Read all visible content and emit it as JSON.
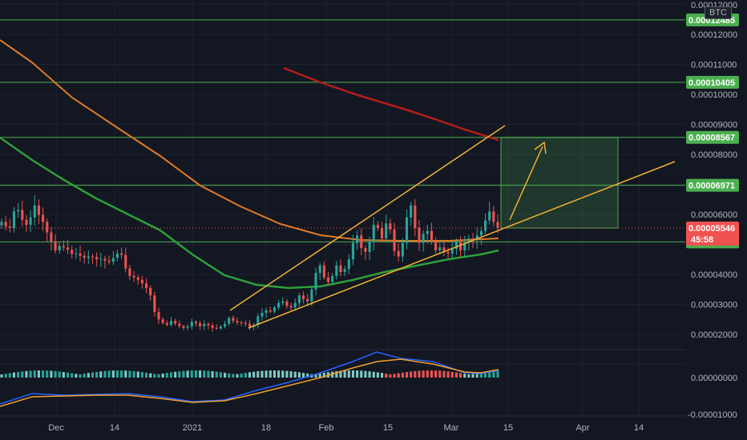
{
  "symbol": "BTC",
  "colors": {
    "background": "#131722",
    "grid": "#1e2230",
    "up": "#26a69a",
    "down": "#ef5350",
    "level_line": "#4caf50",
    "level_tag": "#4caf50",
    "price_tag": "#ef5350",
    "ma_red": "#b71c1c",
    "ma_orange": "#e07b22",
    "ma_green": "#2e9e3a",
    "wedge": "#f0b132",
    "target_box": "#4caf50",
    "macd_line": "#2962ff",
    "signal_line": "#f0a030"
  },
  "chart_data": {
    "type": "candlestick",
    "x_ticks": [
      "Dec",
      "14",
      "2021",
      "18",
      "Feb",
      "15",
      "Mar",
      "15",
      "Apr",
      "14"
    ],
    "y_ticks": [
      "0.00012000",
      "0.00012485",
      "0.00012000",
      "0.00011000",
      "0.00010405",
      "0.00010000",
      "0.00009000",
      "0.00008567",
      "0.00008000",
      "0.00006971",
      "0.00006000",
      "0.00005546",
      "45:58",
      "0.00005084",
      "0.00004000",
      "0.00003000",
      "0.00002000"
    ],
    "levels": [
      {
        "label": "0.00012485",
        "value": 0.00012485
      },
      {
        "label": "0.00010405",
        "value": 0.00010405
      },
      {
        "label": "0.00008567",
        "value": 8.567e-05
      },
      {
        "label": "0.00006971",
        "value": 6.971e-05
      },
      {
        "label": "0.00005084",
        "value": 5.084e-05
      }
    ],
    "last_price": {
      "label": "0.00005546",
      "value": 5.546e-05,
      "countdown": "45:58"
    },
    "price_axis_labels": [
      "0.00012000",
      "0.00011000",
      "0.00010000",
      "0.00009000",
      "0.00008000",
      "0.00006000",
      "0.00004000",
      "0.00003000",
      "0.00002000"
    ],
    "indicator_axis_labels": [
      "0.00000000",
      "-0.00001000"
    ],
    "close_series": [
      5.75e-05,
      5.6e-05,
      5.55e-05,
      6.1e-05,
      6.15e-05,
      5.82e-05,
      5.65e-05,
      5.9e-05,
      6.3e-05,
      5.98e-05,
      5.75e-05,
      5.4e-05,
      5.1e-05,
      4.8e-05,
      4.95e-05,
      4.9e-05,
      4.82e-05,
      4.68e-05,
      4.7e-05,
      4.62e-05,
      4.55e-05,
      4.6e-05,
      4.58e-05,
      4.5e-05,
      4.52e-05,
      4.46e-05,
      4.42e-05,
      4.55e-05,
      4.7e-05,
      4.65e-05,
      4.2e-05,
      3.95e-05,
      3.9e-05,
      3.82e-05,
      3.7e-05,
      3.55e-05,
      3.3e-05,
      2.75e-05,
      2.5e-05,
      2.38e-05,
      2.32e-05,
      2.45e-05,
      2.36e-05,
      2.28e-05,
      2.22e-05,
      2.26e-05,
      2.42e-05,
      2.37e-05,
      2.27e-05,
      2.35e-05,
      2.3e-05,
      2.22e-05,
      2.2e-05,
      2.26e-05,
      2.35e-05,
      2.55e-05,
      2.45e-05,
      2.4e-05,
      2.38e-05,
      2.36e-05,
      2.25e-05,
      2.32e-05,
      2.6e-05,
      2.72e-05,
      2.8e-05,
      2.76e-05,
      2.9e-05,
      3.05e-05,
      3.1e-05,
      2.95e-05,
      2.9e-05,
      3.05e-05,
      3.3e-05,
      3.18e-05,
      3.1e-05,
      3.5e-05,
      4.05e-05,
      4.3e-05,
      3.9e-05,
      3.75e-05,
      3.95e-05,
      4.3e-05,
      4.08e-05,
      4.18e-05,
      4.5e-05,
      5.05e-05,
      5.3e-05,
      4.88e-05,
      4.75e-05,
      5.1e-05,
      5.65e-05,
      5.55e-05,
      5.2e-05,
      5.7e-05,
      5.5e-05,
      4.78e-05,
      4.6e-05,
      5.05e-05,
      5.9e-05,
      6.3e-05,
      5.55e-05,
      5.05e-05,
      5.35e-05,
      5.45e-05,
      5.1e-05,
      4.8e-05,
      4.9e-05,
      4.75e-05,
      4.7e-05,
      4.85e-05,
      5.1e-05,
      4.8e-05,
      5.05e-05,
      5.2e-05,
      5.15e-05,
      5.3e-05,
      5.45e-05,
      5.8e-05,
      6.1e-05,
      5.75e-05,
      5.55e-05
    ]
  }
}
